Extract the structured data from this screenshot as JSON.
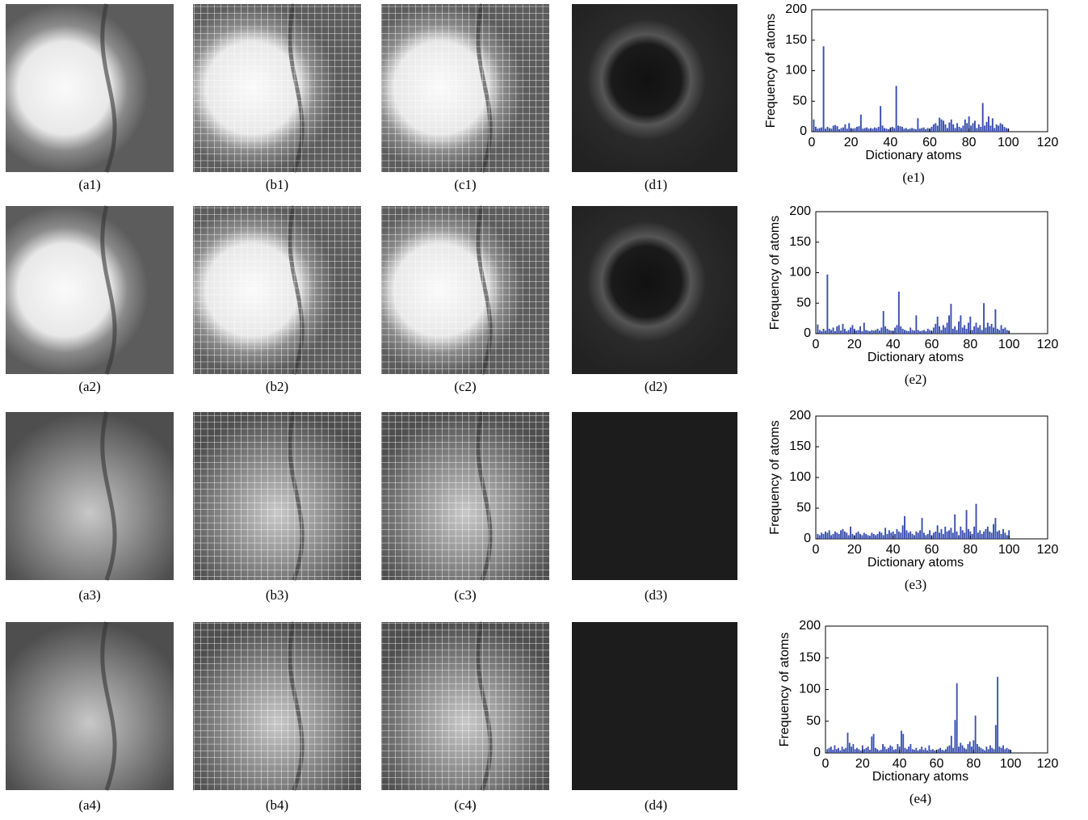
{
  "panels": [
    {
      "labels": [
        "(a1)",
        "(b1)",
        "(c1)",
        "(d1)"
      ]
    },
    {
      "labels": [
        "(a2)",
        "(b2)",
        "(c2)",
        "(d2)"
      ]
    },
    {
      "labels": [
        "(a3)",
        "(b3)",
        "(c3)",
        "(d3)"
      ]
    },
    {
      "labels": [
        "(a4)",
        "(b4)",
        "(c4)",
        "(d4)"
      ]
    }
  ],
  "chart_data": [
    {
      "type": "bar",
      "label": "(e1)",
      "xlabel": "Dictionary atoms",
      "ylabel": "Frequency of atoms",
      "color": "#3a4fb0",
      "xlim": [
        0,
        120
      ],
      "ylim": [
        0,
        200
      ],
      "xticks": [
        0,
        20,
        40,
        60,
        80,
        100,
        120
      ],
      "yticks": [
        0,
        50,
        100,
        150,
        200
      ],
      "x": [
        1,
        2,
        3,
        4,
        5,
        6,
        7,
        8,
        9,
        10,
        11,
        12,
        13,
        14,
        15,
        16,
        17,
        18,
        19,
        20,
        21,
        22,
        23,
        24,
        25,
        26,
        27,
        28,
        29,
        30,
        31,
        32,
        33,
        34,
        35,
        36,
        37,
        38,
        39,
        40,
        41,
        42,
        43,
        44,
        45,
        46,
        47,
        48,
        49,
        50,
        51,
        52,
        53,
        54,
        55,
        56,
        57,
        58,
        59,
        60,
        61,
        62,
        63,
        64,
        65,
        66,
        67,
        68,
        69,
        70,
        71,
        72,
        73,
        74,
        75,
        76,
        77,
        78,
        79,
        80,
        81,
        82,
        83,
        84,
        85,
        86,
        87,
        88,
        89,
        90,
        91,
        92,
        93,
        94,
        95,
        96,
        97,
        98,
        99,
        100
      ],
      "values": [
        20,
        8,
        5,
        6,
        7,
        140,
        5,
        8,
        6,
        5,
        10,
        11,
        9,
        4,
        6,
        7,
        12,
        5,
        14,
        6,
        5,
        6,
        8,
        9,
        28,
        5,
        6,
        7,
        5,
        6,
        5,
        7,
        6,
        8,
        42,
        10,
        6,
        5,
        4,
        7,
        8,
        6,
        75,
        10,
        9,
        8,
        5,
        6,
        4,
        5,
        6,
        5,
        4,
        22,
        5,
        6,
        7,
        4,
        6,
        5,
        8,
        12,
        14,
        10,
        23,
        20,
        18,
        12,
        6,
        15,
        20,
        12,
        6,
        14,
        8,
        6,
        10,
        20,
        14,
        25,
        10,
        14,
        18,
        6,
        12,
        8,
        47,
        10,
        16,
        25,
        10,
        22,
        6,
        12,
        10,
        14,
        12,
        8,
        6,
        5
      ]
    },
    {
      "type": "bar",
      "label": "(e2)",
      "xlabel": "Dictionary atoms",
      "ylabel": "Frequency of atoms",
      "color": "#3a4fb0",
      "xlim": [
        0,
        120
      ],
      "ylim": [
        0,
        200
      ],
      "xticks": [
        0,
        20,
        40,
        60,
        80,
        100,
        120
      ],
      "yticks": [
        0,
        50,
        100,
        150,
        200
      ],
      "x": [
        1,
        2,
        3,
        4,
        5,
        6,
        7,
        8,
        9,
        10,
        11,
        12,
        13,
        14,
        15,
        16,
        17,
        18,
        19,
        20,
        21,
        22,
        23,
        24,
        25,
        26,
        27,
        28,
        29,
        30,
        31,
        32,
        33,
        34,
        35,
        36,
        37,
        38,
        39,
        40,
        41,
        42,
        43,
        44,
        45,
        46,
        47,
        48,
        49,
        50,
        51,
        52,
        53,
        54,
        55,
        56,
        57,
        58,
        59,
        60,
        61,
        62,
        63,
        64,
        65,
        66,
        67,
        68,
        69,
        70,
        71,
        72,
        73,
        74,
        75,
        76,
        77,
        78,
        79,
        80,
        81,
        82,
        83,
        84,
        85,
        86,
        87,
        88,
        89,
        90,
        91,
        92,
        93,
        94,
        95,
        96,
        97,
        98,
        99,
        100
      ],
      "values": [
        15,
        6,
        4,
        8,
        5,
        97,
        8,
        6,
        10,
        4,
        12,
        14,
        5,
        16,
        8,
        4,
        6,
        10,
        14,
        8,
        5,
        6,
        12,
        4,
        18,
        6,
        5,
        4,
        6,
        5,
        6,
        8,
        5,
        10,
        37,
        12,
        8,
        6,
        5,
        4,
        10,
        14,
        69,
        12,
        8,
        6,
        5,
        4,
        10,
        6,
        5,
        30,
        6,
        4,
        5,
        6,
        4,
        8,
        6,
        4,
        10,
        16,
        28,
        12,
        6,
        14,
        10,
        18,
        30,
        49,
        8,
        12,
        6,
        20,
        30,
        10,
        14,
        8,
        18,
        28,
        6,
        12,
        18,
        10,
        14,
        6,
        50,
        10,
        18,
        12,
        16,
        10,
        40,
        8,
        6,
        14,
        8,
        10,
        6,
        4
      ]
    },
    {
      "type": "bar",
      "label": "(e3)",
      "xlabel": "Dictionary atoms",
      "ylabel": "Frequency of atoms",
      "color": "#3a4fb0",
      "xlim": [
        0,
        120
      ],
      "ylim": [
        0,
        200
      ],
      "xticks": [
        0,
        20,
        40,
        60,
        80,
        100,
        120
      ],
      "yticks": [
        0,
        50,
        100,
        150,
        200
      ],
      "x": [
        1,
        2,
        3,
        4,
        5,
        6,
        7,
        8,
        9,
        10,
        11,
        12,
        13,
        14,
        15,
        16,
        17,
        18,
        19,
        20,
        21,
        22,
        23,
        24,
        25,
        26,
        27,
        28,
        29,
        30,
        31,
        32,
        33,
        34,
        35,
        36,
        37,
        38,
        39,
        40,
        41,
        42,
        43,
        44,
        45,
        46,
        47,
        48,
        49,
        50,
        51,
        52,
        53,
        54,
        55,
        56,
        57,
        58,
        59,
        60,
        61,
        62,
        63,
        64,
        65,
        66,
        67,
        68,
        69,
        70,
        71,
        72,
        73,
        74,
        75,
        76,
        77,
        78,
        79,
        80,
        81,
        82,
        83,
        84,
        85,
        86,
        87,
        88,
        89,
        90,
        91,
        92,
        93,
        94,
        95,
        96,
        97,
        98,
        99,
        100
      ],
      "values": [
        8,
        6,
        10,
        8,
        12,
        10,
        14,
        6,
        8,
        12,
        10,
        8,
        14,
        16,
        12,
        10,
        6,
        20,
        8,
        6,
        10,
        12,
        8,
        6,
        10,
        8,
        6,
        5,
        10,
        8,
        6,
        8,
        12,
        10,
        6,
        18,
        8,
        14,
        10,
        12,
        8,
        16,
        12,
        10,
        22,
        37,
        14,
        10,
        12,
        8,
        6,
        12,
        10,
        14,
        34,
        10,
        6,
        8,
        14,
        6,
        10,
        12,
        22,
        10,
        16,
        8,
        20,
        12,
        14,
        18,
        10,
        40,
        12,
        6,
        20,
        14,
        10,
        47,
        16,
        12,
        8,
        20,
        57,
        10,
        14,
        8,
        12,
        16,
        20,
        12,
        10,
        24,
        34,
        12,
        14,
        8,
        16,
        10,
        6,
        14
      ]
    },
    {
      "type": "bar",
      "label": "(e4)",
      "xlabel": "Dictionary atoms",
      "ylabel": "Frequency of atoms",
      "color": "#3a4fb0",
      "xlim": [
        0,
        120
      ],
      "ylim": [
        0,
        200
      ],
      "xticks": [
        0,
        20,
        40,
        60,
        80,
        100,
        120
      ],
      "yticks": [
        0,
        50,
        100,
        150,
        200
      ],
      "x": [
        1,
        2,
        3,
        4,
        5,
        6,
        7,
        8,
        9,
        10,
        11,
        12,
        13,
        14,
        15,
        16,
        17,
        18,
        19,
        20,
        21,
        22,
        23,
        24,
        25,
        26,
        27,
        28,
        29,
        30,
        31,
        32,
        33,
        34,
        35,
        36,
        37,
        38,
        39,
        40,
        41,
        42,
        43,
        44,
        45,
        46,
        47,
        48,
        49,
        50,
        51,
        52,
        53,
        54,
        55,
        56,
        57,
        58,
        59,
        60,
        61,
        62,
        63,
        64,
        65,
        66,
        67,
        68,
        69,
        70,
        71,
        72,
        73,
        74,
        75,
        76,
        77,
        78,
        79,
        80,
        81,
        82,
        83,
        84,
        85,
        86,
        87,
        88,
        89,
        90,
        91,
        92,
        93,
        94,
        95,
        96,
        97,
        98,
        99,
        100
      ],
      "values": [
        6,
        8,
        10,
        5,
        12,
        6,
        8,
        4,
        10,
        6,
        8,
        32,
        16,
        10,
        14,
        6,
        8,
        6,
        4,
        12,
        6,
        8,
        10,
        5,
        26,
        30,
        8,
        6,
        4,
        5,
        14,
        10,
        6,
        8,
        12,
        10,
        5,
        6,
        14,
        10,
        35,
        30,
        8,
        6,
        10,
        14,
        6,
        5,
        8,
        4,
        6,
        10,
        5,
        8,
        4,
        12,
        5,
        6,
        4,
        5,
        6,
        8,
        5,
        4,
        6,
        10,
        12,
        27,
        8,
        52,
        110,
        10,
        16,
        12,
        8,
        6,
        14,
        18,
        10,
        20,
        59,
        14,
        10,
        8,
        6,
        4,
        10,
        6,
        12,
        8,
        6,
        44,
        120,
        10,
        8,
        12,
        6,
        8,
        6,
        5
      ]
    }
  ]
}
